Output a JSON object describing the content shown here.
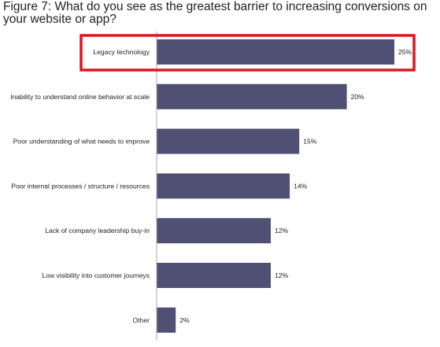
{
  "chart_data": {
    "type": "bar",
    "orientation": "horizontal",
    "title": "Figure 7: What do you see as the greatest barrier to increasing conversions on your website or app?",
    "categories": [
      "Legacy technology",
      "Inability to understand online behavior at scale",
      "Poor understanding of what needs to improve",
      "Poor internal processes / structure / resources",
      "Lack of company leadership buy-in",
      "Low visibility into customer journeys",
      "Other"
    ],
    "values": [
      25,
      20,
      15,
      14,
      12,
      12,
      2
    ],
    "value_labels": [
      "25%",
      "20%",
      "15%",
      "14%",
      "12%",
      "12%",
      "2%"
    ],
    "xlim": [
      0,
      25
    ],
    "grid": false,
    "legend": "none",
    "highlighted_category": "Legacy technology",
    "colors": {
      "bar": "#4f5073",
      "highlight_box": "#e0141c",
      "axis": "#aaaaaa"
    }
  }
}
